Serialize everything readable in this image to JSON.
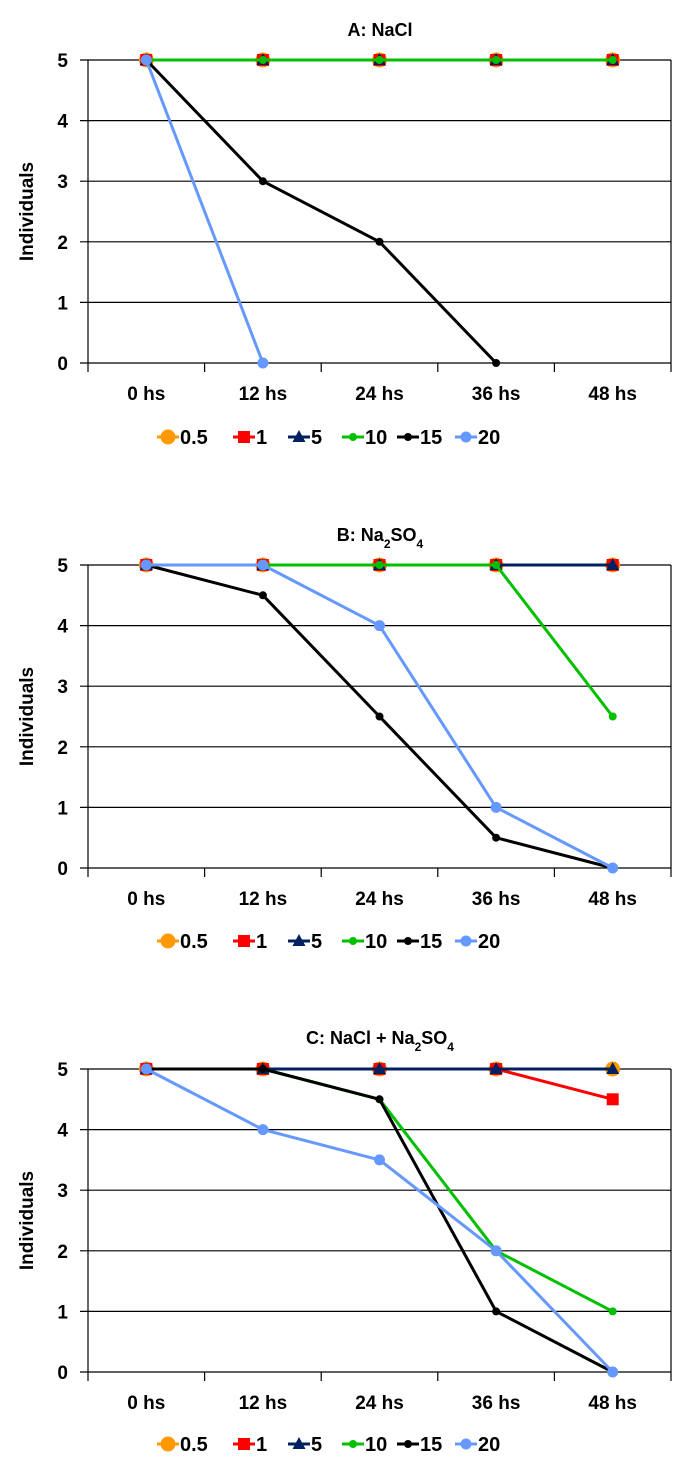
{
  "colors": {
    "0.5": "#FF9900",
    "1": "#FF0000",
    "5": "#002060",
    "10": "#00C000",
    "15": "#000000",
    "20": "#6699FF"
  },
  "chart_data": [
    {
      "type": "line",
      "title": "A: NaCl",
      "title_main": "A: NaCl",
      "title_sub_parts": [],
      "xlabel": "",
      "ylabel": "Individuals",
      "categories": [
        "0 hs",
        "12 hs",
        "24 hs",
        "36 hs",
        "48 hs"
      ],
      "yticks": [
        "0",
        "1",
        "2",
        "3",
        "4",
        "5"
      ],
      "ylim": [
        0,
        5
      ],
      "grid": "horizontal",
      "legend_position": "bottom",
      "series": [
        {
          "name": "0.5",
          "marker": "circle-large",
          "values": [
            5,
            5,
            5,
            5,
            5
          ]
        },
        {
          "name": "1",
          "marker": "square",
          "values": [
            5,
            5,
            5,
            5,
            5
          ]
        },
        {
          "name": "5",
          "marker": "triangle",
          "values": [
            5,
            5,
            5,
            5,
            5
          ]
        },
        {
          "name": "10",
          "marker": "circle-small",
          "values": [
            5,
            5,
            5,
            5,
            5
          ]
        },
        {
          "name": "15",
          "marker": "circle-small",
          "values": [
            5,
            3,
            2,
            0,
            null
          ]
        },
        {
          "name": "20",
          "marker": "circle",
          "values": [
            5,
            0,
            null,
            null,
            null
          ]
        }
      ]
    },
    {
      "type": "line",
      "title": "B: Na2SO4",
      "title_main": "B: Na",
      "title_sub_parts": [
        "2",
        "SO",
        "4"
      ],
      "xlabel": "",
      "ylabel": "Individuals",
      "categories": [
        "0 hs",
        "12 hs",
        "24 hs",
        "36 hs",
        "48 hs"
      ],
      "yticks": [
        "0",
        "1",
        "2",
        "3",
        "4",
        "5"
      ],
      "ylim": [
        0,
        5
      ],
      "grid": "horizontal",
      "legend_position": "bottom",
      "series": [
        {
          "name": "0.5",
          "marker": "circle-large",
          "values": [
            5,
            5,
            5,
            5,
            5
          ]
        },
        {
          "name": "1",
          "marker": "square",
          "values": [
            5,
            5,
            5,
            5,
            5
          ]
        },
        {
          "name": "5",
          "marker": "triangle",
          "values": [
            5,
            5,
            5,
            5,
            5
          ]
        },
        {
          "name": "10",
          "marker": "circle-small",
          "values": [
            5,
            5,
            5,
            5,
            2.5
          ]
        },
        {
          "name": "15",
          "marker": "circle-small",
          "values": [
            5,
            4.5,
            2.5,
            0.5,
            0
          ]
        },
        {
          "name": "20",
          "marker": "circle",
          "values": [
            5,
            5,
            4,
            1,
            0
          ]
        }
      ]
    },
    {
      "type": "line",
      "title": "C: NaCl + Na2SO4",
      "title_main": "C: NaCl + Na",
      "title_sub_parts": [
        "2",
        "SO",
        "4"
      ],
      "xlabel": "",
      "ylabel": "Individuals",
      "categories": [
        "0 hs",
        "12 hs",
        "24 hs",
        "36 hs",
        "48 hs"
      ],
      "yticks": [
        "0",
        "1",
        "2",
        "3",
        "4",
        "5"
      ],
      "ylim": [
        0,
        5
      ],
      "grid": "horizontal",
      "legend_position": "bottom",
      "series": [
        {
          "name": "0.5",
          "marker": "circle-large",
          "values": [
            5,
            5,
            5,
            5,
            5
          ]
        },
        {
          "name": "1",
          "marker": "square",
          "values": [
            5,
            5,
            5,
            5,
            4.5
          ]
        },
        {
          "name": "5",
          "marker": "triangle",
          "values": [
            5,
            5,
            5,
            5,
            5
          ]
        },
        {
          "name": "10",
          "marker": "circle-small",
          "values": [
            5,
            5,
            4.5,
            2,
            1
          ]
        },
        {
          "name": "15",
          "marker": "circle-small",
          "values": [
            5,
            5,
            4.5,
            1,
            0
          ]
        },
        {
          "name": "20",
          "marker": "circle",
          "values": [
            5,
            4,
            3.5,
            2,
            0
          ]
        }
      ]
    }
  ]
}
